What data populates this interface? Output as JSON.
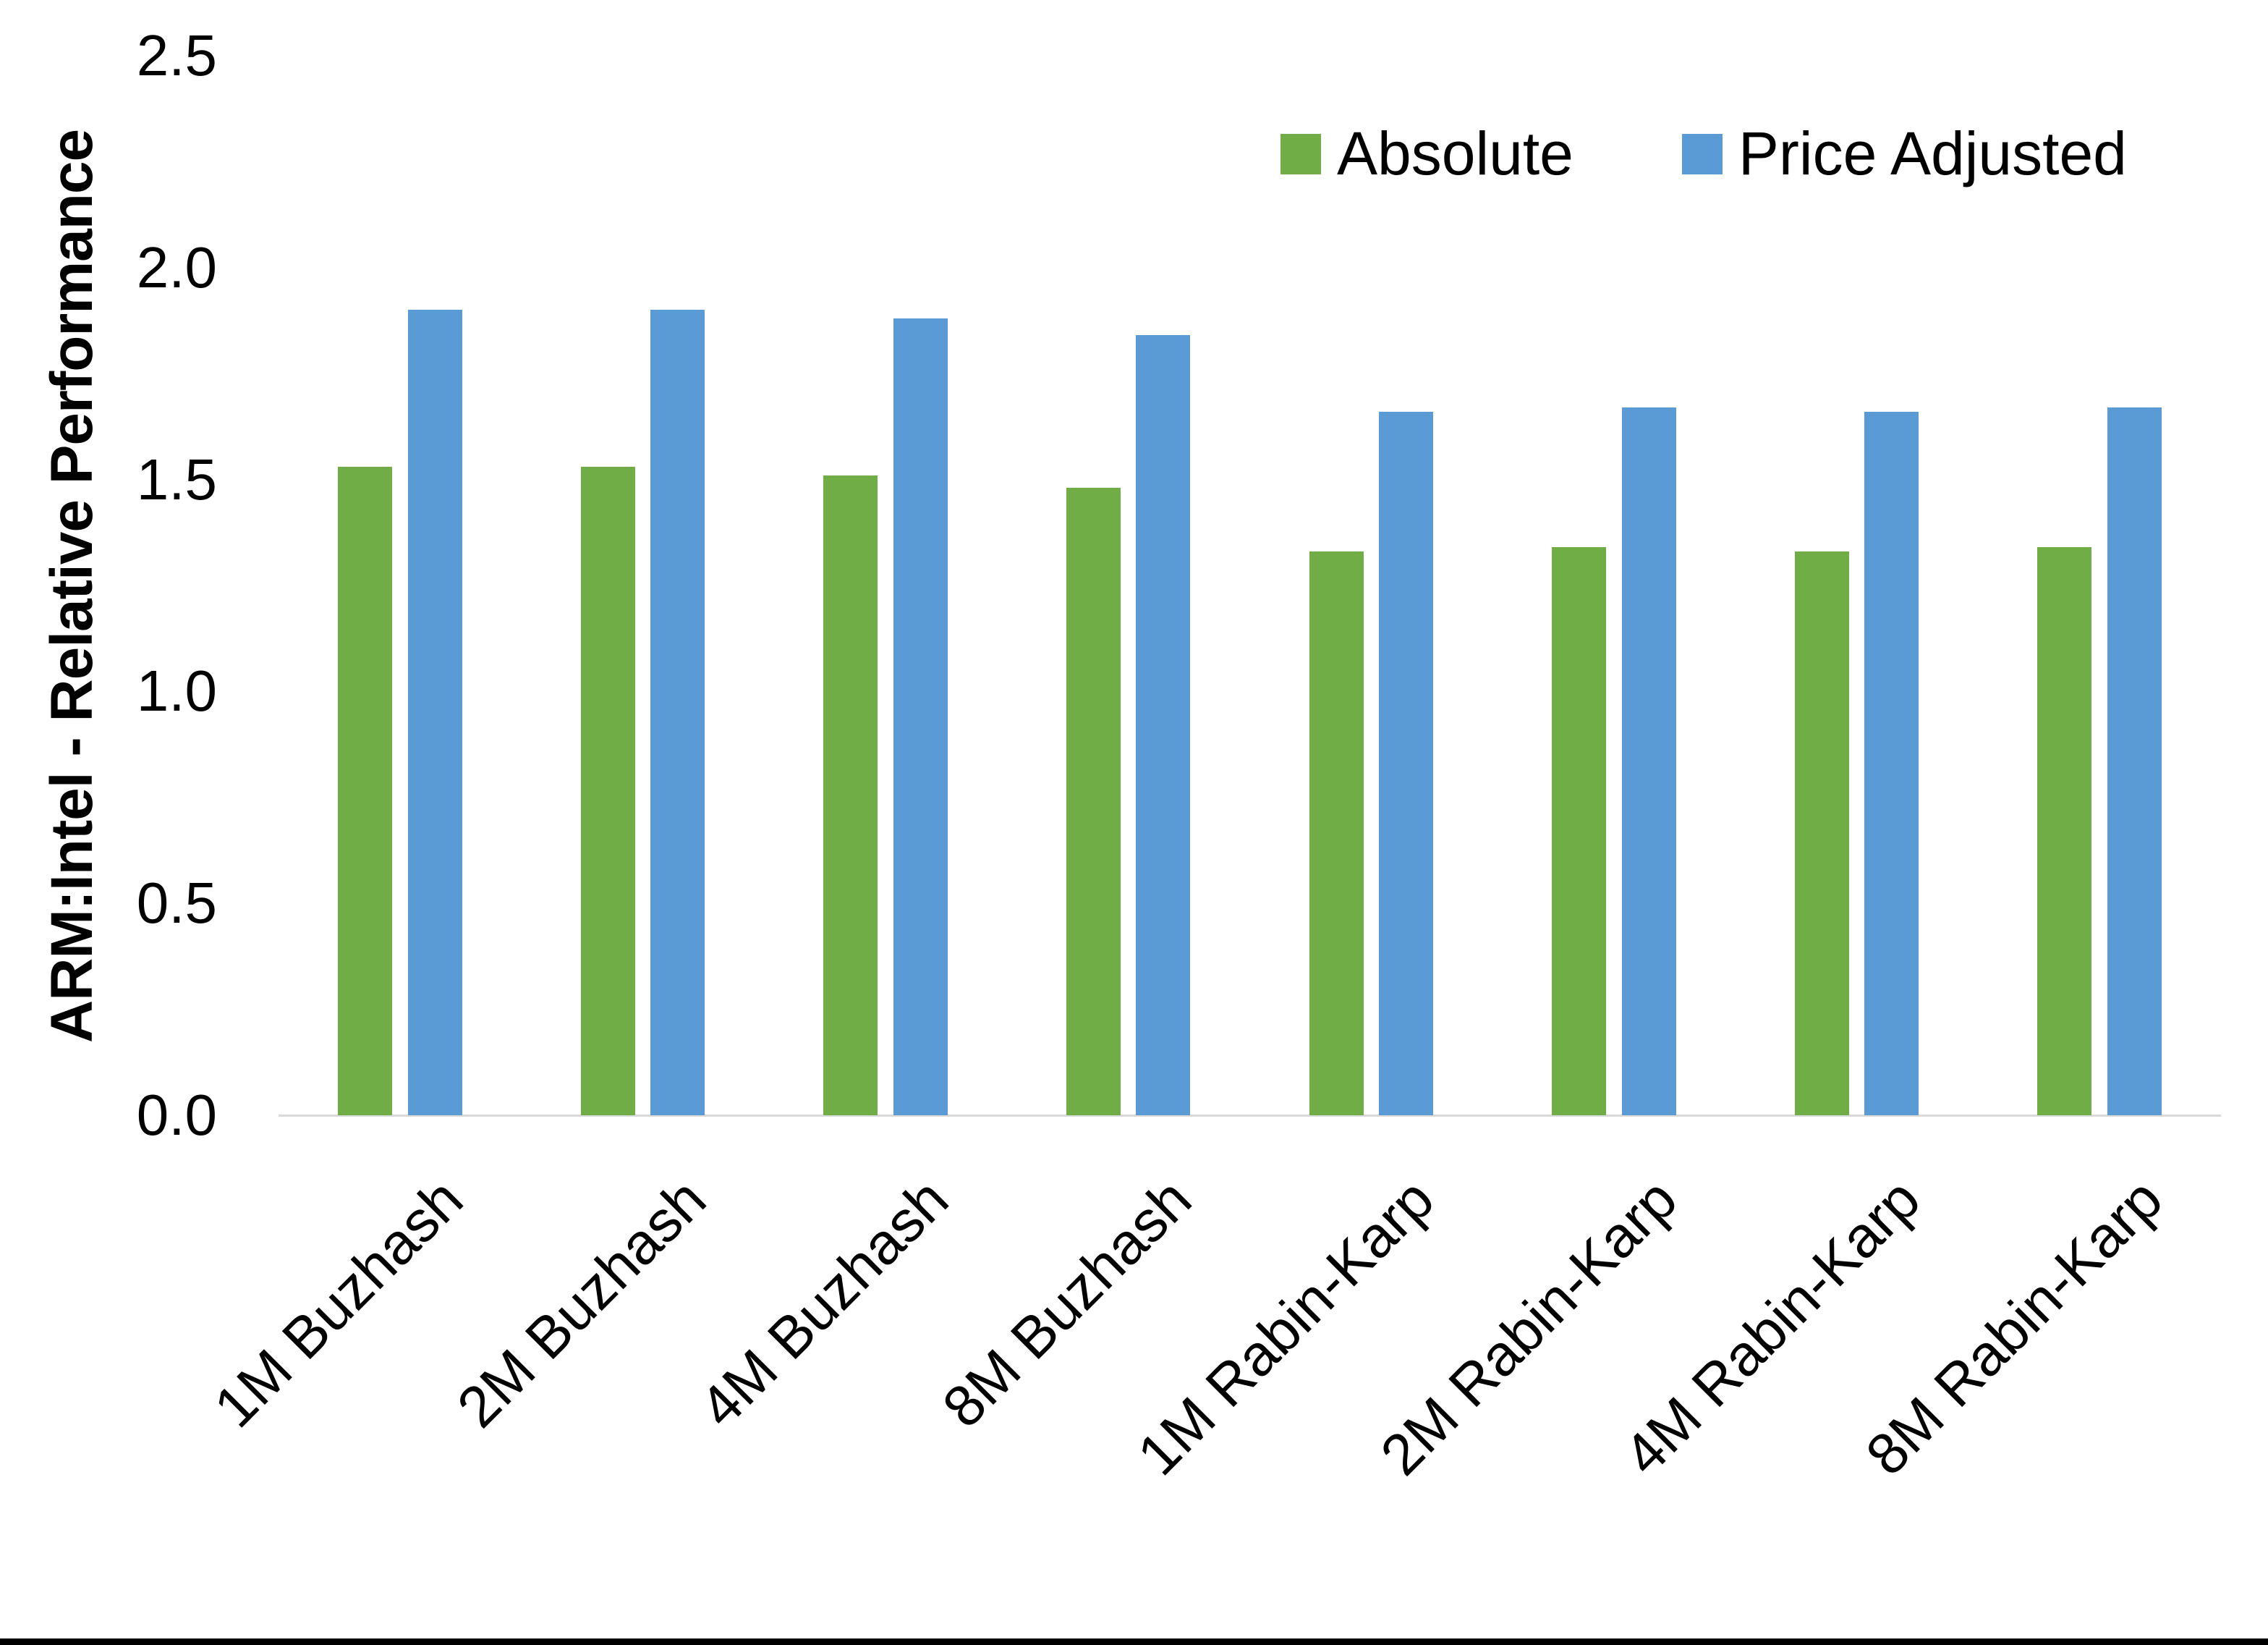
{
  "figure": {
    "background": "#FFFFFF",
    "bottom_bar_color": "#000000"
  },
  "chart_data": {
    "type": "bar",
    "title": "",
    "xlabel": "",
    "ylabel": "ARM:Intel - Relative Performance",
    "categories": [
      "1M Buzhash",
      "2M Buzhash",
      "4M Buzhash",
      "8M Buzhash",
      "1M Rabin-Karp",
      "2M Rabin-Karp",
      "4M Rabin-Karp",
      "8M Rabin-Karp"
    ],
    "series": [
      {
        "name": "Absolute",
        "color": "#70AD47",
        "values": [
          1.53,
          1.53,
          1.51,
          1.48,
          1.33,
          1.34,
          1.33,
          1.34
        ]
      },
      {
        "name": "Price Adjusted",
        "color": "#5B9BD5",
        "values": [
          1.9,
          1.9,
          1.88,
          1.84,
          1.66,
          1.67,
          1.66,
          1.67
        ]
      }
    ],
    "ylim": [
      0.0,
      2.5
    ],
    "y_ticks": [
      "0.0",
      "0.5",
      "1.0",
      "1.5",
      "2.0",
      "2.5"
    ],
    "grid": "off",
    "legend_position": "top-right",
    "axis_line_color": "#D9D9D9"
  }
}
